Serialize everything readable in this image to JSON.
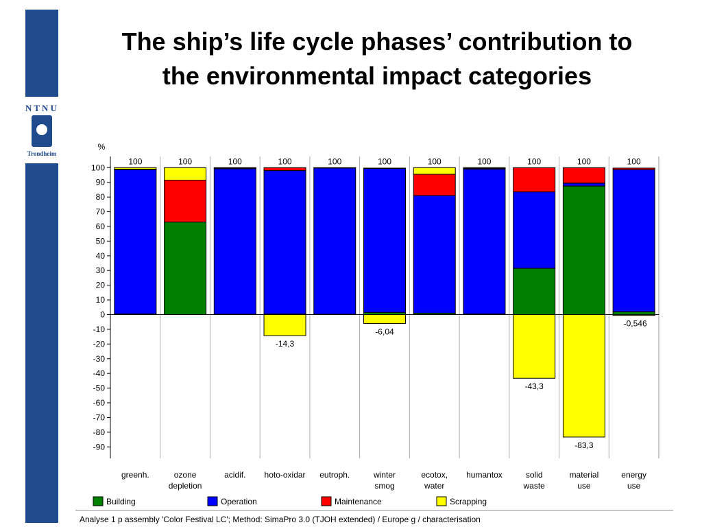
{
  "logo": {
    "name": "NTNU",
    "city": "Trondheim"
  },
  "slide_title": "The ship’s life cycle phases’ contribution to the environmental impact categories",
  "footer": "Analyse 1 p assembly 'Color Festival LC';  Method: SimaPro 3.0 (TJOH extended) /  Europe g / characterisation",
  "chart_data": {
    "type": "bar",
    "stacked": true,
    "ylabel": "%",
    "ylim": [
      -100,
      100
    ],
    "yticks": [
      100,
      90,
      80,
      70,
      60,
      50,
      40,
      30,
      20,
      10,
      0,
      -10,
      -20,
      -30,
      -40,
      -50,
      -60,
      -70,
      -80,
      -90
    ],
    "categories": [
      [
        "greenh."
      ],
      [
        "ozone",
        "depletion"
      ],
      [
        "acidif."
      ],
      [
        "hoto-oxidar"
      ],
      [
        "eutroph."
      ],
      [
        "winter",
        "smog"
      ],
      [
        "ecotox,",
        "water"
      ],
      [
        "humantox"
      ],
      [
        "solid",
        "waste"
      ],
      [
        "material",
        "use"
      ],
      [
        "energy",
        "use"
      ]
    ],
    "top_labels": [
      "100",
      "100",
      "100",
      "100",
      "100",
      "100",
      "100",
      "100",
      "100",
      "100",
      "100"
    ],
    "bottom_labels": [
      "",
      "",
      "",
      "-14,3",
      "",
      "-6,04",
      "",
      "",
      "-43,3",
      "-83,3",
      "-0,546"
    ],
    "series": [
      {
        "name": "Building",
        "color": "#008000",
        "values": [
          0.5,
          63,
          0.3,
          0.5,
          0.3,
          1.5,
          1,
          0.5,
          31.5,
          87.5,
          2
        ]
      },
      {
        "name": "Operation",
        "color": "#0000ff",
        "values": [
          98,
          0,
          99,
          97.5,
          99.5,
          98,
          80,
          98.5,
          52,
          2,
          96.7
        ]
      },
      {
        "name": "Maintenance",
        "color": "#ff0000",
        "values": [
          0.5,
          28.5,
          0.5,
          2,
          0.2,
          0.2,
          14.5,
          0.5,
          16.5,
          10.5,
          1
        ]
      },
      {
        "name": "Scrapping",
        "color": "#ffff00",
        "values": [
          1,
          8.5,
          0.2,
          -14.3,
          0,
          -6.04,
          4.5,
          0.5,
          -43.3,
          -83.3,
          -0.546
        ]
      }
    ],
    "legend_position": "bottom",
    "grid": false
  }
}
